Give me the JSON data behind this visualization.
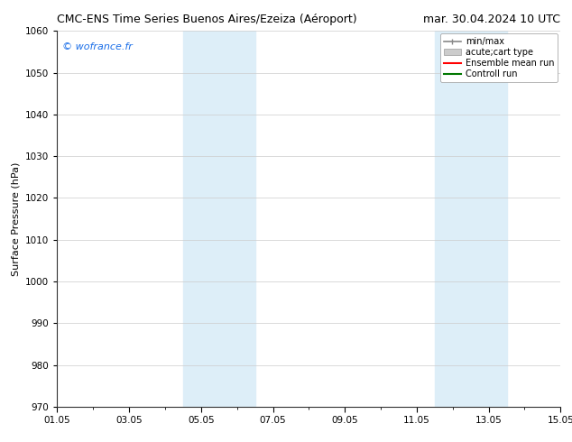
{
  "title_left": "CMC-ENS Time Series Buenos Aires/Ezeiza (Aéroport)",
  "title_right": "mar. 30.04.2024 10 UTC",
  "ylabel": "Surface Pressure (hPa)",
  "watermark": "© wofrance.fr",
  "watermark_color": "#1a6ee8",
  "ylim": [
    970,
    1060
  ],
  "yticks": [
    970,
    980,
    990,
    1000,
    1010,
    1020,
    1030,
    1040,
    1050,
    1060
  ],
  "xlim": [
    0,
    14
  ],
  "xtick_labels": [
    "01.05",
    "03.05",
    "05.05",
    "07.05",
    "09.05",
    "11.05",
    "13.05",
    "15.05"
  ],
  "xtick_positions": [
    0,
    2,
    4,
    6,
    8,
    10,
    12,
    14
  ],
  "shaded_regions": [
    {
      "start": 3.5,
      "end": 5.5
    },
    {
      "start": 10.5,
      "end": 12.5
    }
  ],
  "shaded_color": "#ddeef8",
  "background_color": "#ffffff",
  "legend_labels": [
    "min/max",
    "acute;cart type",
    "Ensemble mean run",
    "Controll run"
  ],
  "title_fontsize": 9,
  "ylabel_fontsize": 8,
  "tick_fontsize": 7.5,
  "legend_fontsize": 7,
  "watermark_fontsize": 8
}
